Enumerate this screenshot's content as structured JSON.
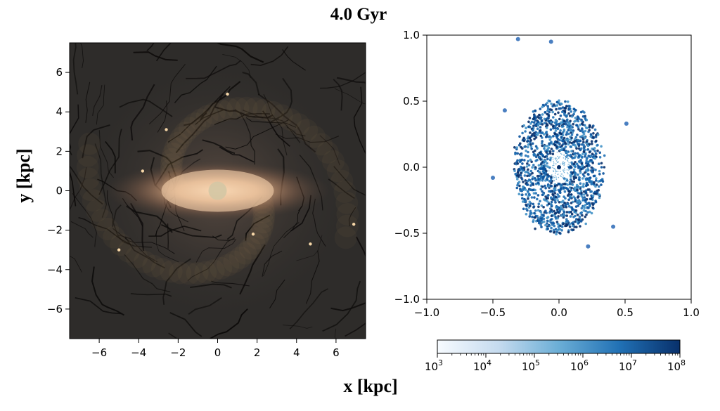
{
  "figure": {
    "title": "4.0 Gyr",
    "xlabel": "x [kpc]",
    "ylabel": "y [kpc]"
  },
  "chart_data": [
    {
      "type": "image",
      "panel": "left",
      "description_of_axes": "galaxy face-on stellar/gas rendering",
      "xlim": [
        -7.5,
        7.5
      ],
      "ylim": [
        -7.5,
        7.5
      ],
      "x_ticks": [
        -6,
        -4,
        -2,
        0,
        2,
        4,
        6
      ],
      "y_ticks": [
        -6,
        -4,
        -2,
        0,
        2,
        4,
        6
      ],
      "x_tick_labels": [
        "−6",
        "−4",
        "−2",
        "0",
        "2",
        "4",
        "6"
      ],
      "y_tick_labels": [
        "−6",
        "−4",
        "−2",
        "0",
        "2",
        "4",
        "6"
      ],
      "colors": {
        "background": "#2e2c2a",
        "glow": "#f2c9a0",
        "filament": "#0d0b0a"
      }
    },
    {
      "type": "scatter",
      "panel": "right",
      "xlim": [
        -1.0,
        1.0
      ],
      "ylim": [
        -1.0,
        1.0
      ],
      "x_ticks": [
        -1.0,
        -0.5,
        0.0,
        0.5,
        1.0
      ],
      "y_ticks": [
        -1.0,
        -0.5,
        0.0,
        0.5,
        1.0
      ],
      "x_tick_labels": [
        "−1.0",
        "−0.5",
        "0.0",
        "0.5",
        "1.0"
      ],
      "y_tick_labels": [
        "−1.0",
        "−0.5",
        "0.0",
        "0.5",
        "1.0"
      ],
      "distribution": {
        "center": [
          0.0,
          0.0
        ],
        "semi_axis_x": 0.34,
        "semi_axis_y": 0.5
      },
      "outliers": [
        {
          "x": -0.31,
          "y": 0.97
        },
        {
          "x": -0.06,
          "y": 0.95
        },
        {
          "x": 0.22,
          "y": -0.6
        },
        {
          "x": 0.51,
          "y": 0.33
        },
        {
          "x": -0.41,
          "y": 0.43
        },
        {
          "x": -0.5,
          "y": -0.08
        },
        {
          "x": 0.41,
          "y": -0.45
        }
      ],
      "colorbar": {
        "scale": "log",
        "range": [
          1000,
          100000000
        ],
        "tick_labels": [
          {
            "base": "10",
            "exp": "3"
          },
          {
            "base": "10",
            "exp": "4"
          },
          {
            "base": "10",
            "exp": "5"
          },
          {
            "base": "10",
            "exp": "6"
          },
          {
            "base": "10",
            "exp": "7"
          },
          {
            "base": "10",
            "exp": "8"
          }
        ],
        "colormap": [
          "#f7fbff",
          "#c6dbef",
          "#6baed6",
          "#2171b5",
          "#08306b"
        ]
      }
    }
  ]
}
